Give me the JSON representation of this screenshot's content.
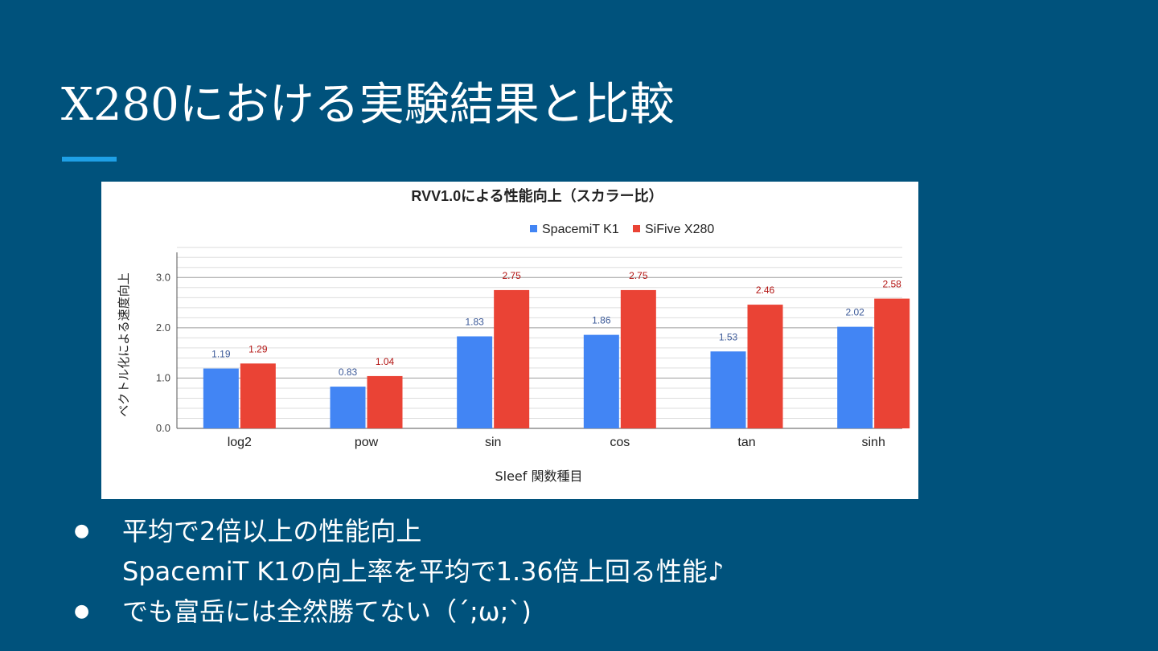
{
  "slide": {
    "title": "X280における実験結果と比較",
    "accent_color": "#1ea0e6",
    "background_color": "#00527c"
  },
  "bullets": [
    {
      "lines": [
        "平均で2倍以上の性能向上",
        "SpacemiT K1の向上率を平均で1.36倍上回る性能♪"
      ]
    },
    {
      "lines": [
        "でも富岳には全然勝てない（´;ω;`)"
      ]
    }
  ],
  "bullet_glyph": "●",
  "chart_data": {
    "type": "bar",
    "title": "RVV1.0による性能向上（スカラー比）",
    "xlabel": "Sleef 関数種目",
    "ylabel": "ベクトル化による速度向上",
    "categories": [
      "log2",
      "pow",
      "sin",
      "cos",
      "tan",
      "sinh"
    ],
    "series": [
      {
        "name": "SpacemiT K1",
        "values": [
          1.19,
          0.83,
          1.83,
          1.86,
          1.53,
          2.02
        ],
        "color": "#4285f4",
        "label_color": "#3b5998"
      },
      {
        "name": "SiFive X280",
        "values": [
          1.29,
          1.04,
          2.75,
          2.75,
          2.46,
          2.58
        ],
        "color": "#ea4335",
        "label_color": "#b31412"
      }
    ],
    "ylim": [
      0,
      3.5
    ],
    "yticks": [
      "0.0",
      "1.0",
      "2.0",
      "3.0"
    ],
    "grid": true,
    "legend_position": "top"
  }
}
